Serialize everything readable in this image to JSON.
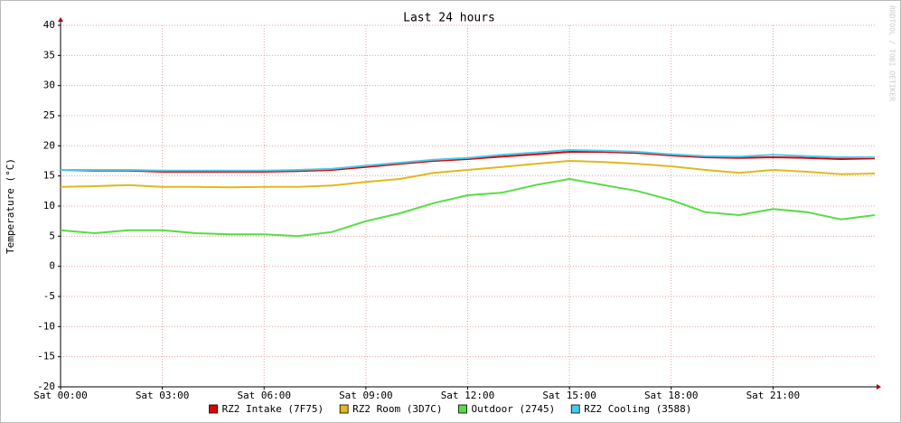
{
  "chart_data": {
    "type": "line",
    "title": "Last 24 hours",
    "y_label": "Temperature (°C)",
    "watermark": "RRDTOOL / TOBI OETIKER",
    "x": [
      0,
      1,
      2,
      3,
      4,
      5,
      6,
      7,
      8,
      9,
      10,
      11,
      12,
      13,
      14,
      15,
      16,
      17,
      18,
      19,
      20,
      21,
      22,
      23,
      24
    ],
    "xlim": [
      0,
      24
    ],
    "xticks": [
      {
        "value": 0,
        "label": "Sat 00:00"
      },
      {
        "value": 3,
        "label": "Sat 03:00"
      },
      {
        "value": 6,
        "label": "Sat 06:00"
      },
      {
        "value": 9,
        "label": "Sat 09:00"
      },
      {
        "value": 12,
        "label": "Sat 12:00"
      },
      {
        "value": 15,
        "label": "Sat 15:00"
      },
      {
        "value": 18,
        "label": "Sat 18:00"
      },
      {
        "value": 21,
        "label": "Sat 21:00"
      }
    ],
    "ylim": [
      -20,
      40
    ],
    "yticks": [
      40,
      35,
      30,
      25,
      20,
      15,
      10,
      5,
      0,
      -5,
      -10,
      -15,
      -20
    ],
    "grid": true,
    "legend": "bottom",
    "series": [
      {
        "name": "RZ2 Intake (7F75)",
        "color": "#dd0000",
        "values": [
          16.0,
          15.9,
          15.9,
          15.7,
          15.7,
          15.7,
          15.7,
          15.8,
          16.0,
          16.5,
          17.0,
          17.5,
          17.8,
          18.2,
          18.6,
          19.0,
          19.0,
          18.8,
          18.4,
          18.1,
          18.0,
          18.1,
          18.0,
          17.8,
          17.9
        ]
      },
      {
        "name": "RZ2 Room (3D7C)",
        "color": "#e0b820",
        "values": [
          13.2,
          13.3,
          13.5,
          13.2,
          13.2,
          13.1,
          13.2,
          13.2,
          13.4,
          14.0,
          14.5,
          15.5,
          16.0,
          16.5,
          17.0,
          17.5,
          17.3,
          17.0,
          16.6,
          16.0,
          15.5,
          16.0,
          15.7,
          15.3,
          15.4
        ]
      },
      {
        "name": "Outdoor (2745)",
        "color": "#55dd44",
        "values": [
          6.0,
          5.5,
          6.0,
          6.0,
          5.5,
          5.3,
          5.3,
          5.0,
          5.7,
          7.5,
          8.8,
          10.5,
          11.8,
          12.2,
          13.5,
          14.5,
          13.5,
          12.5,
          11.0,
          9.0,
          8.5,
          9.5,
          9.0,
          7.8,
          8.5
        ]
      },
      {
        "name": "RZ2 Cooling (3588)",
        "color": "#44ccee",
        "values": [
          16.0,
          16.0,
          16.0,
          15.9,
          15.9,
          15.9,
          15.9,
          16.0,
          16.2,
          16.7,
          17.2,
          17.7,
          18.0,
          18.5,
          18.9,
          19.3,
          19.2,
          19.0,
          18.6,
          18.3,
          18.2,
          18.5,
          18.3,
          18.1,
          18.1
        ]
      }
    ]
  }
}
